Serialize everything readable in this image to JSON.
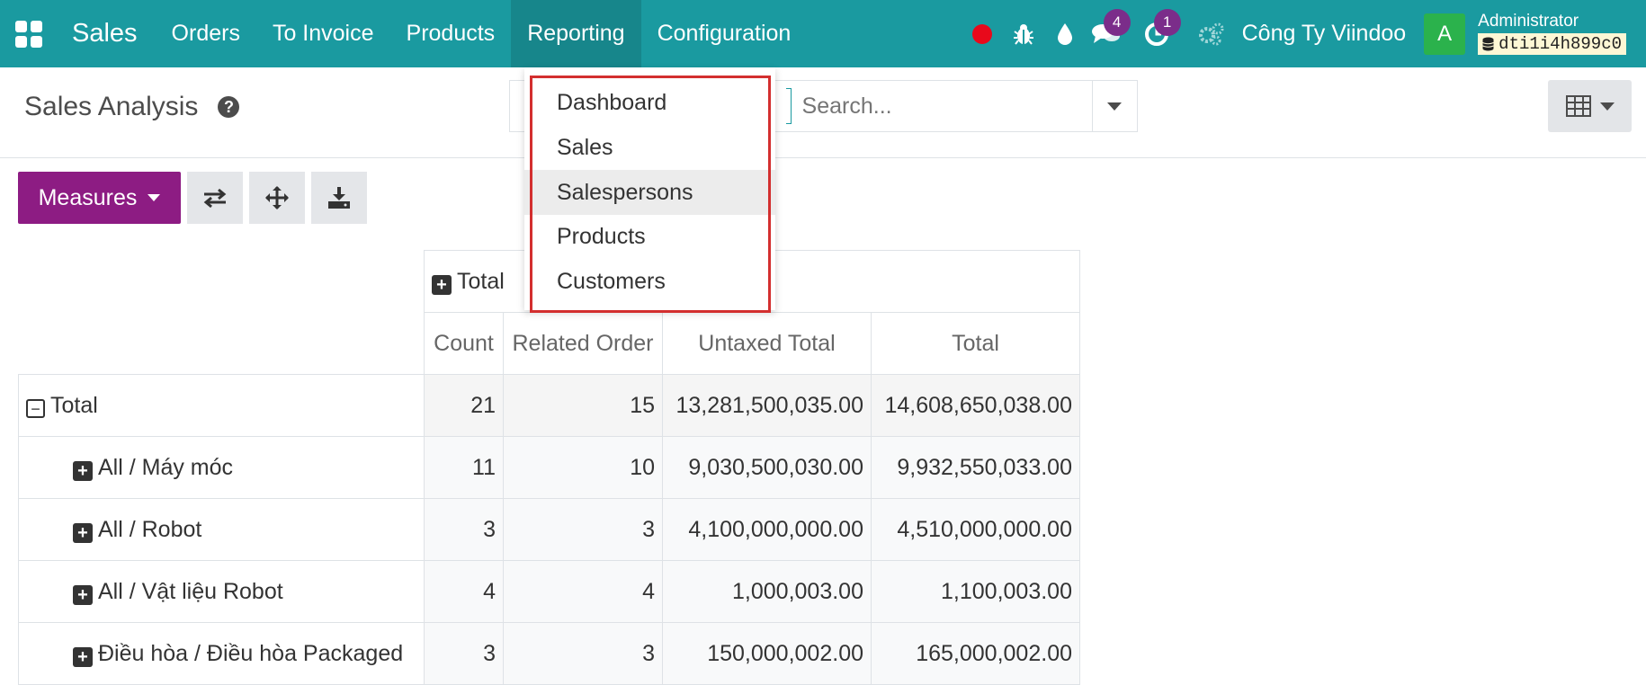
{
  "navbar": {
    "brand": "Sales",
    "menu": [
      "Orders",
      "To Invoice",
      "Products",
      "Reporting",
      "Configuration"
    ],
    "active_menu": "Reporting",
    "chat_badge": "4",
    "activity_badge": "1",
    "company": "Công Ty Viindoo",
    "avatar_letter": "A",
    "user": "Administrator",
    "db": "dti1i4h899c0",
    "colors": {
      "bar": "#1a9aa0",
      "badge": "#7b2d8a",
      "record": "#e8091b",
      "avatar": "#2bb24c"
    }
  },
  "control_panel": {
    "title": "Sales Analysis",
    "help": "?",
    "search_placeholder": "Search..."
  },
  "pivot_buttons": {
    "measures_label": "Measures",
    "icons": [
      "flip-axis-icon",
      "expand-all-icon",
      "download-icon"
    ]
  },
  "pivot": {
    "col_total": "Total",
    "measures": [
      "Count",
      "Related Order",
      "Untaxed Total",
      "Total"
    ],
    "total_row": {
      "label": "Total",
      "count": "21",
      "orders": "15",
      "untaxed": "13,281,500,035.00",
      "total": "14,608,650,038.00"
    },
    "rows": [
      {
        "label": "All / Máy móc",
        "count": "11",
        "orders": "10",
        "untaxed": "9,030,500,030.00",
        "total": "9,932,550,033.00"
      },
      {
        "label": "All / Robot",
        "count": "3",
        "orders": "3",
        "untaxed": "4,100,000,000.00",
        "total": "4,510,000,000.00"
      },
      {
        "label": "All / Vật liệu Robot",
        "count": "4",
        "orders": "4",
        "untaxed": "1,000,003.00",
        "total": "1,100,003.00"
      },
      {
        "label": "Điều hòa / Điều hòa Packaged",
        "count": "3",
        "orders": "3",
        "untaxed": "150,000,002.00",
        "total": "165,000,002.00"
      }
    ]
  },
  "reporting_menu": {
    "items": [
      "Dashboard",
      "Sales",
      "Salespersons",
      "Products",
      "Customers"
    ],
    "hovered": "Salespersons",
    "highlight_color": "#d32f2f"
  }
}
